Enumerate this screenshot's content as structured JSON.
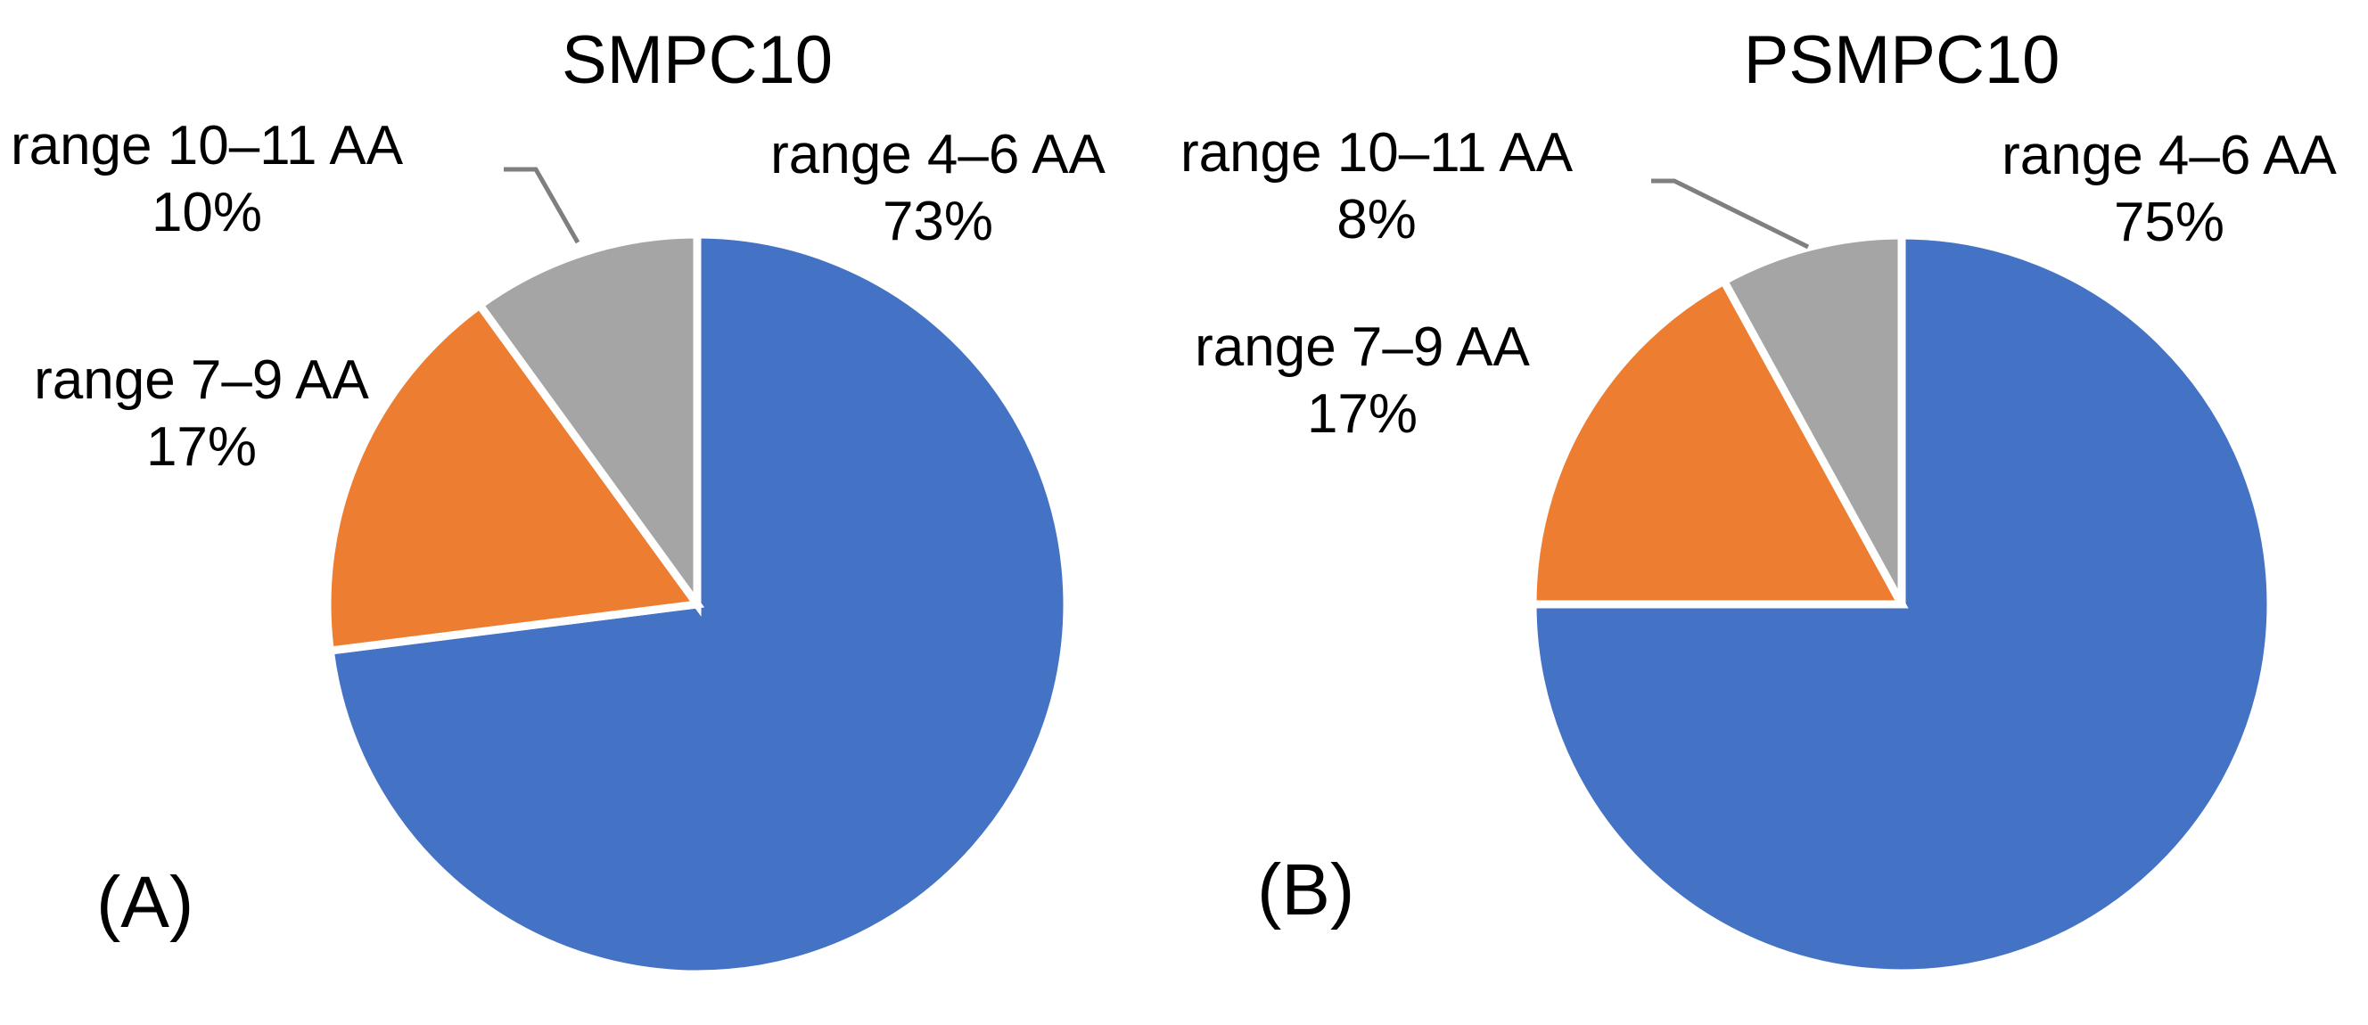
{
  "background_color": "#FFFFFF",
  "text_color": "#000000",
  "chart_data": [
    {
      "type": "pie",
      "panel_label": "(A)",
      "title": "SMPC10",
      "categories": [
        "range 4–6 AA",
        "range 7–9 AA",
        "range 10–11 AA"
      ],
      "values": [
        73,
        17,
        10
      ],
      "value_labels": [
        "73%",
        "17%",
        "10%"
      ],
      "unit": "%",
      "colors": [
        "#4472C4",
        "#ED7D31",
        "#A5A5A5"
      ],
      "start_angle_deg": 0,
      "direction": "clockwise",
      "labels_position": "outside",
      "legend": "none",
      "slice_border_color": "#FFFFFF",
      "leader_line_color": "#7F7F7F"
    },
    {
      "type": "pie",
      "panel_label": "(B)",
      "title": "PSMPC10",
      "categories": [
        "range 4–6 AA",
        "range 7–9 AA",
        "range 10–11 AA"
      ],
      "values": [
        75,
        17,
        8
      ],
      "value_labels": [
        "75%",
        "17%",
        "8%"
      ],
      "unit": "%",
      "colors": [
        "#4472C4",
        "#ED7D31",
        "#A5A5A5"
      ],
      "start_angle_deg": 0,
      "direction": "clockwise",
      "labels_position": "outside",
      "legend": "none",
      "slice_border_color": "#FFFFFF",
      "leader_line_color": "#7F7F7F"
    }
  ]
}
